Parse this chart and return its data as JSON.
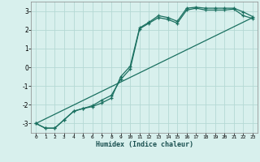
{
  "xlabel": "Humidex (Indice chaleur)",
  "xlim": [
    -0.5,
    23.5
  ],
  "ylim": [
    -3.5,
    3.5
  ],
  "yticks": [
    -3,
    -2,
    -1,
    0,
    1,
    2,
    3
  ],
  "xticks": [
    0,
    1,
    2,
    3,
    4,
    5,
    6,
    7,
    8,
    9,
    10,
    11,
    12,
    13,
    14,
    15,
    16,
    17,
    18,
    19,
    20,
    21,
    22,
    23
  ],
  "bg_color": "#d8f0ed",
  "grid_color": "#b5d9d4",
  "line_color": "#1a7060",
  "line1_x": [
    0,
    1,
    2,
    3,
    4,
    5,
    6,
    7,
    8,
    9,
    10,
    11,
    12,
    13,
    14,
    15,
    16,
    17,
    18,
    19,
    20,
    21,
    22,
    23
  ],
  "line1_y": [
    -3.0,
    -3.25,
    -3.25,
    -2.8,
    -2.35,
    -2.2,
    -2.1,
    -1.9,
    -1.65,
    -0.5,
    0.05,
    2.1,
    2.4,
    2.75,
    2.65,
    2.45,
    3.15,
    3.2,
    3.15,
    3.15,
    3.15,
    3.15,
    2.95,
    2.7
  ],
  "line2_x": [
    0,
    1,
    2,
    3,
    4,
    5,
    6,
    7,
    8,
    9,
    10,
    11,
    12,
    13,
    14,
    15,
    16,
    17,
    18,
    19,
    20,
    21,
    22,
    23
  ],
  "line2_y": [
    -3.0,
    -3.25,
    -3.25,
    -2.8,
    -2.35,
    -2.2,
    -2.05,
    -1.75,
    -1.5,
    -0.65,
    -0.1,
    2.05,
    2.35,
    2.65,
    2.55,
    2.35,
    3.05,
    3.15,
    3.05,
    3.05,
    3.05,
    3.1,
    2.75,
    2.6
  ],
  "line3_x": [
    0,
    23
  ],
  "line3_y": [
    -3.0,
    2.65
  ]
}
